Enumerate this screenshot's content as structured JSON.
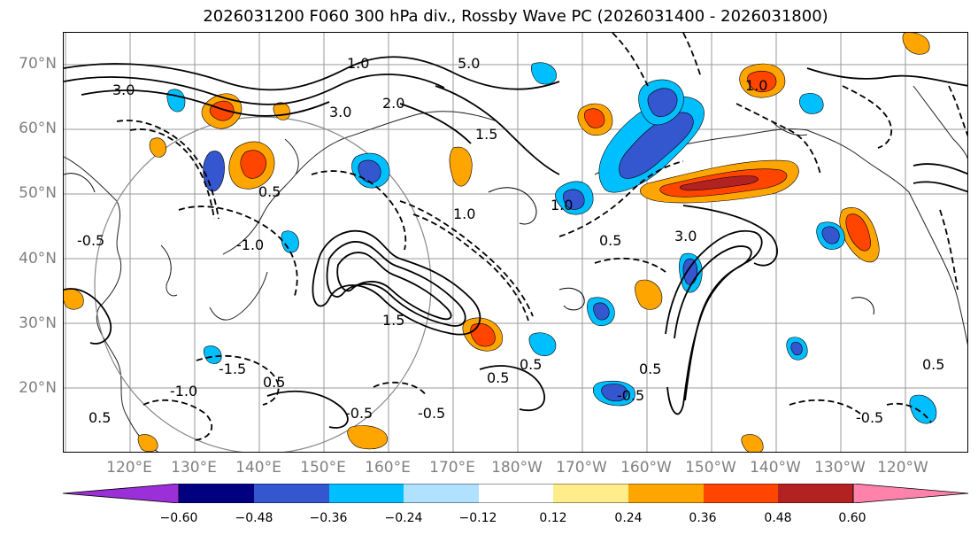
{
  "title": "2026031200 F060 300 hPa div., Rossby Wave PC (2026031400 - 2026031800)",
  "lat_labels": [
    "70°N",
    "60°N",
    "50°N",
    "40°N",
    "30°N",
    "20°N"
  ],
  "lon_labels": [
    "120°E",
    "130°E",
    "140°E",
    "150°E",
    "160°E",
    "170°E",
    "180°W",
    "170°W",
    "160°W",
    "150°W",
    "140°W",
    "130°W",
    "120°W"
  ],
  "contour_labels": [
    "3.0",
    "2.0",
    "5.0",
    "1.0",
    "0.5",
    "-0.5",
    "-1.0",
    "-1.5",
    "1.5",
    "-0.5",
    "0.5",
    "3.0",
    "1.0",
    "0.5",
    "0.5",
    "-0.5",
    "1.0",
    "0.5",
    "-0.5",
    "0.5",
    "3.0",
    "1.0",
    "-0.5",
    "0.5",
    "0.5",
    "-1.0",
    "1.5"
  ],
  "colorbar": {
    "colors": [
      "#9b30d9",
      "#000080",
      "#3456cf",
      "#00bfff",
      "#b0e2ff",
      "#ffffff",
      "#ffec8b",
      "#ffa500",
      "#ff4500",
      "#b22222",
      "#ff82ab"
    ],
    "tick_labels": [
      "−0.60",
      "−0.48",
      "−0.36",
      "−0.24",
      "−0.12",
      "0.12",
      "0.24",
      "0.36",
      "0.48",
      "0.60"
    ]
  }
}
